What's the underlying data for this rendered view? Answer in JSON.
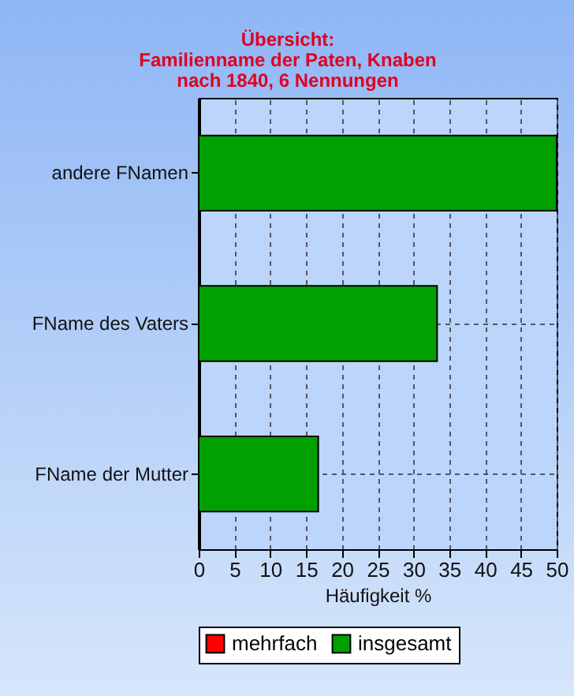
{
  "chart_data": {
    "type": "bar",
    "orientation": "horizontal",
    "title": "Übersicht:\nFamilienname der Paten, Knaben\nnach 1840, 6 Nennungen",
    "xlabel": "Häufigkeit %",
    "categories": [
      "andere FNamen",
      "FName des Vaters",
      "FName der Mutter"
    ],
    "series": [
      {
        "name": "mehrfach",
        "color": "#ff0000",
        "values": [
          null,
          null,
          null
        ]
      },
      {
        "name": "insgesamt",
        "color": "#00a000",
        "values": [
          50,
          33.3,
          16.7
        ]
      }
    ],
    "xlim": [
      0,
      50
    ],
    "xticks": [
      0,
      5,
      10,
      15,
      20,
      25,
      30,
      35,
      40,
      45,
      50
    ],
    "grid": true,
    "legend": "bottom"
  }
}
